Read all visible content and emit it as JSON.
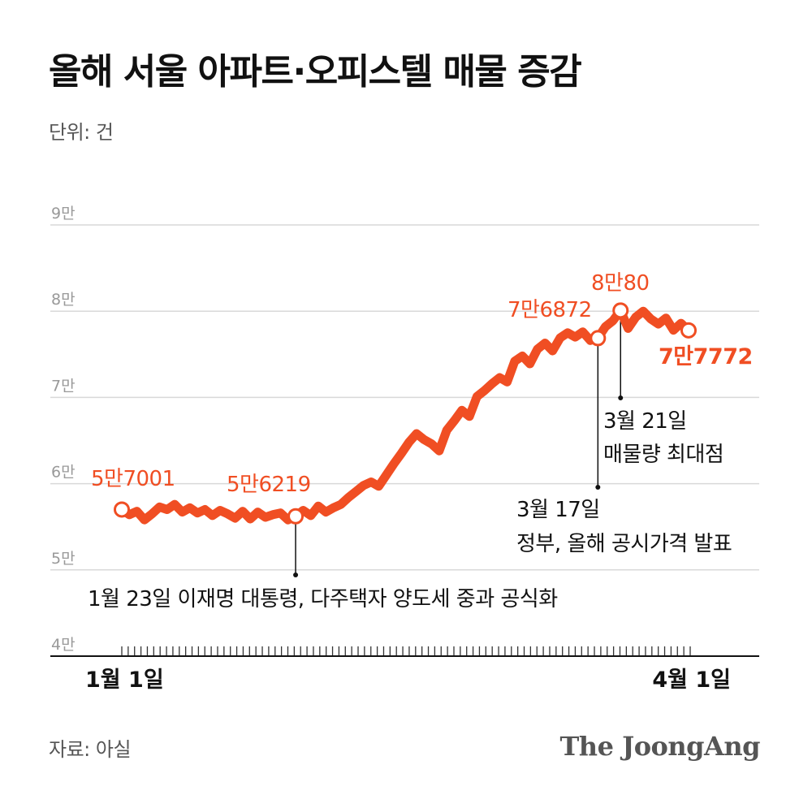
{
  "header": {
    "title": "올해 서울 아파트·오피스텔 매물 증감",
    "unit": "단위: 건"
  },
  "footer": {
    "source": "자료: 아실",
    "brand": "The JoongAng"
  },
  "colors": {
    "line": "#f04e23",
    "grid": "#d9d9d9",
    "axis": "#111111"
  },
  "chart_data": {
    "type": "line",
    "ylim": [
      40000,
      90000
    ],
    "yticks": [
      {
        "value": 90000,
        "label": "9만"
      },
      {
        "value": 80000,
        "label": "8만"
      },
      {
        "value": 70000,
        "label": "7만"
      },
      {
        "value": 60000,
        "label": "6만"
      },
      {
        "value": 50000,
        "label": "5만"
      },
      {
        "value": 40000,
        "label": "4만"
      }
    ],
    "x_start_label": "1월 1일",
    "x_end_label": "4월 1일",
    "tick_count": 90,
    "series": [
      {
        "values": [
          57001,
          56400,
          56800,
          55800,
          56500,
          57300,
          57000,
          57600,
          56700,
          57200,
          56600,
          57000,
          56300,
          56900,
          56500,
          56000,
          56800,
          55900,
          56700,
          56100,
          56400,
          56600,
          55800,
          56219,
          56900,
          56300,
          57400,
          56700,
          57200,
          57600,
          58400,
          59100,
          59800,
          60200,
          59700,
          61000,
          62300,
          63500,
          64800,
          65800,
          65100,
          64600,
          63800,
          66200,
          67300,
          68500,
          67800,
          70100,
          70800,
          71600,
          72300,
          71800,
          74200,
          74800,
          73900,
          75600,
          76300,
          75400,
          76900,
          77500,
          77000,
          77600,
          76600,
          76872,
          78200,
          78900,
          80080,
          78000,
          79300,
          80000,
          79100,
          78500,
          79200,
          77800,
          78600,
          77772
        ],
        "x_index": [
          0,
          1,
          2,
          3,
          4,
          5,
          6,
          7,
          8,
          9,
          10,
          11,
          12,
          13,
          14,
          15,
          16,
          17,
          18,
          19,
          20,
          21,
          22,
          23,
          24,
          25,
          26,
          27,
          28,
          29,
          30,
          31,
          32,
          33,
          34,
          35,
          36,
          37,
          38,
          39,
          40,
          41,
          42,
          43,
          44,
          45,
          46,
          47,
          48,
          49,
          50,
          51,
          52,
          53,
          54,
          55,
          56,
          57,
          58,
          59,
          60,
          61,
          62,
          63,
          64,
          65,
          66,
          67,
          68,
          69,
          70,
          71,
          72,
          73,
          74,
          75
        ]
      }
    ],
    "points": [
      {
        "x_index": 0,
        "value": 57001,
        "label": "5만7001"
      },
      {
        "x_index": 23,
        "value": 56219,
        "label": "5만6219"
      },
      {
        "x_index": 63,
        "value": 76872,
        "label": "7만6872"
      },
      {
        "x_index": 66,
        "value": 80080,
        "label": "8만80"
      },
      {
        "x_index": 75,
        "value": 77772,
        "label": "7만7772"
      }
    ],
    "annotations": [
      {
        "lines": [
          "1월 23일 이재명 대통령, 다주택자 양도세 중과 공식화"
        ]
      },
      {
        "lines": [
          "3월 17일",
          "정부, 올해 공시가격 발표"
        ]
      },
      {
        "lines": [
          "3월 21일",
          "매물량 최대점"
        ]
      }
    ]
  }
}
